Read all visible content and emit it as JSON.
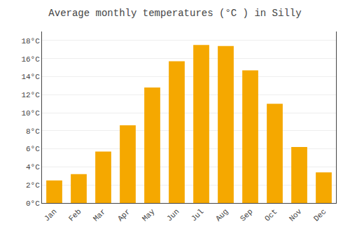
{
  "chart_data": {
    "type": "bar",
    "title": "Average monthly temperatures (°C ) in Silly",
    "categories": [
      "Jan",
      "Feb",
      "Mar",
      "Apr",
      "May",
      "Jun",
      "Jul",
      "Aug",
      "Sep",
      "Oct",
      "Nov",
      "Dec"
    ],
    "values": [
      2.5,
      3.2,
      5.7,
      8.6,
      12.8,
      15.7,
      17.5,
      17.4,
      14.7,
      11.0,
      6.2,
      3.4
    ],
    "color": "#F5A800",
    "ylim": [
      0,
      19
    ],
    "yticks": [
      {
        "value": 0,
        "label": "0°C"
      },
      {
        "value": 2,
        "label": "2°C"
      },
      {
        "value": 4,
        "label": "4°C"
      },
      {
        "value": 6,
        "label": "6°C"
      },
      {
        "value": 8,
        "label": "8°C"
      },
      {
        "value": 10,
        "label": "10°C"
      },
      {
        "value": 12,
        "label": "12°C"
      },
      {
        "value": 14,
        "label": "14°C"
      },
      {
        "value": 16,
        "label": "16°C"
      },
      {
        "value": 18,
        "label": "18°C"
      }
    ],
    "grid": true
  }
}
